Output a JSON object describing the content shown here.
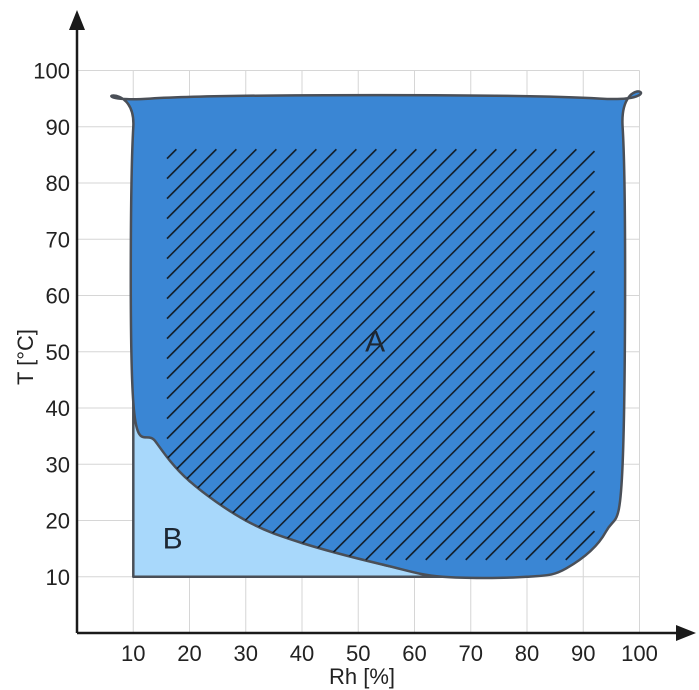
{
  "chart_data": {
    "type": "area",
    "xlabel": "Rh [%]",
    "ylabel": "T [°C]",
    "xlim": [
      0,
      100
    ],
    "ylim": [
      0,
      100
    ],
    "x_ticks": [
      10,
      20,
      30,
      40,
      50,
      60,
      70,
      80,
      90,
      100
    ],
    "y_ticks": [
      10,
      20,
      30,
      40,
      50,
      60,
      70,
      80,
      90,
      100
    ],
    "grid": true,
    "regions": [
      {
        "label": "A",
        "label_at": {
          "x": 53,
          "y": 52
        },
        "color": "#3a86d4",
        "hatched": true,
        "boundary": [
          {
            "x": 10,
            "y": 41
          },
          {
            "x": 10,
            "y": 90
          },
          {
            "x": 13,
            "y": 95
          },
          {
            "x": 93,
            "y": 95
          },
          {
            "x": 97,
            "y": 90
          },
          {
            "x": 97,
            "y": 30
          },
          {
            "x": 94,
            "y": 18
          },
          {
            "x": 87,
            "y": 11.5
          },
          {
            "x": 80,
            "y": 10
          },
          {
            "x": 65,
            "y": 10
          },
          {
            "x": 55,
            "y": 12
          },
          {
            "x": 40,
            "y": 16
          },
          {
            "x": 30,
            "y": 20
          },
          {
            "x": 20,
            "y": 27
          },
          {
            "x": 14,
            "y": 34
          }
        ]
      },
      {
        "label": "B",
        "label_at": {
          "x": 17,
          "y": 17
        },
        "color": "#a8d8fb",
        "hatched": false,
        "boundary": [
          {
            "x": 10,
            "y": 10
          },
          {
            "x": 10,
            "y": 41
          },
          {
            "x": 14,
            "y": 34
          },
          {
            "x": 20,
            "y": 27
          },
          {
            "x": 30,
            "y": 20
          },
          {
            "x": 40,
            "y": 16
          },
          {
            "x": 55,
            "y": 12
          },
          {
            "x": 65,
            "y": 10
          }
        ]
      }
    ],
    "colors": {
      "outline": "#4a4f57",
      "grid": "#d6d6d6",
      "axis": "#1a1a1a",
      "hatch": "#14202d"
    }
  }
}
